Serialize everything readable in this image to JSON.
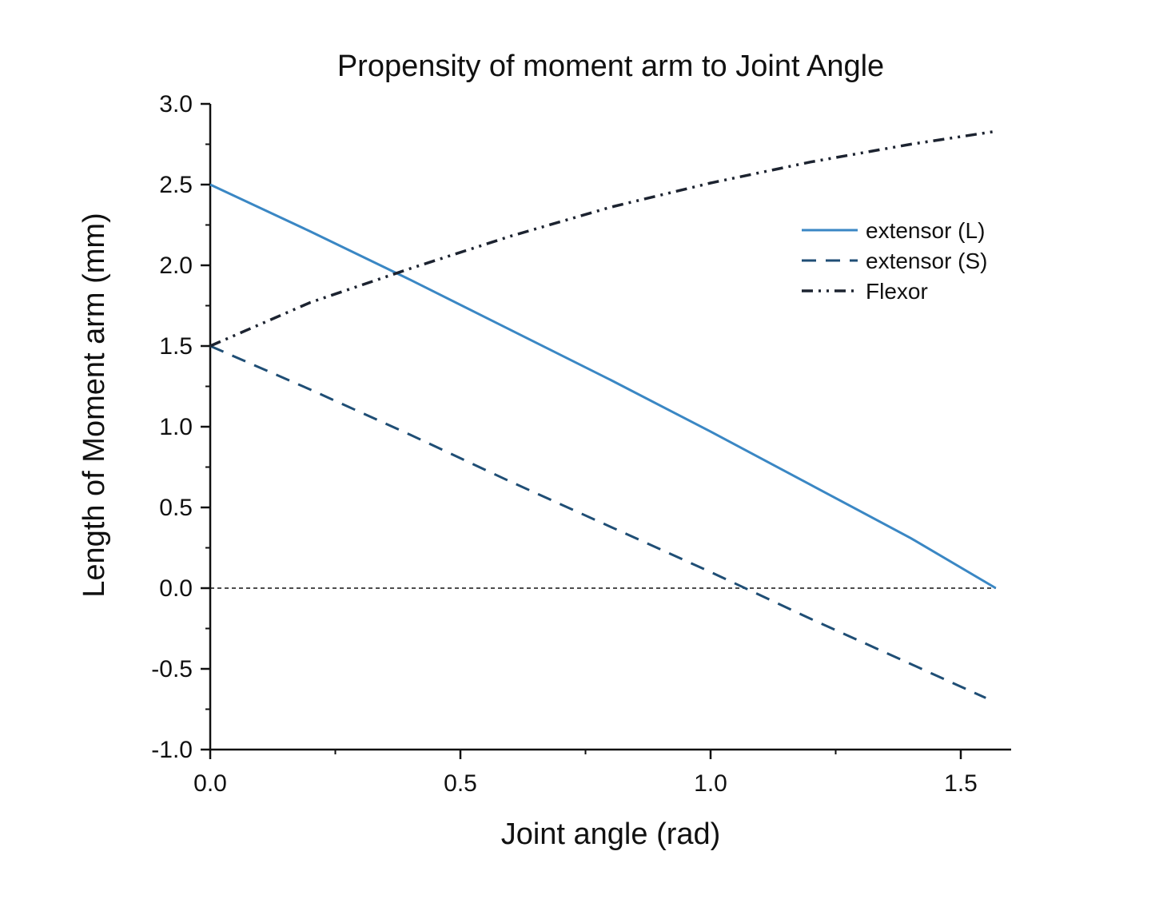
{
  "chart_data": {
    "type": "line",
    "title": "Propensity of moment arm to Joint Angle",
    "xlabel": "Joint angle (rad)",
    "ylabel": "Length of Moment arm (mm)",
    "xlim": [
      0.0,
      1.6
    ],
    "ylim": [
      -1.0,
      3.0
    ],
    "xticks": [
      "0.0",
      "0.5",
      "1.0",
      "1.5"
    ],
    "yticks": [
      "-1.0",
      "-0.5",
      "0.0",
      "0.5",
      "1.0",
      "1.5",
      "2.0",
      "2.5",
      "3.0"
    ],
    "reference_line_y": 0.0,
    "grid": false,
    "legend_position": "top-right",
    "series": [
      {
        "name": "extensor (L)",
        "style": "solid",
        "color": "#3a87c4",
        "x": [
          0.0,
          0.2,
          0.4,
          0.6,
          0.8,
          1.0,
          1.2,
          1.4,
          1.57
        ],
        "y": [
          2.5,
          2.21,
          1.91,
          1.6,
          1.29,
          0.97,
          0.64,
          0.31,
          0.0
        ]
      },
      {
        "name": "extensor (S)",
        "style": "dashed",
        "color": "#1f4e75",
        "x": [
          0.0,
          0.2,
          0.4,
          0.6,
          0.8,
          1.0,
          1.2,
          1.4,
          1.55
        ],
        "y": [
          1.5,
          1.23,
          0.95,
          0.66,
          0.38,
          0.1,
          -0.19,
          -0.47,
          -0.68
        ]
      },
      {
        "name": "Flexor",
        "style": "dash-dot-dot",
        "color": "#1c2330",
        "x": [
          0.0,
          0.2,
          0.4,
          0.6,
          0.8,
          1.0,
          1.2,
          1.4,
          1.57
        ],
        "y": [
          1.5,
          1.77,
          1.98,
          2.18,
          2.36,
          2.51,
          2.64,
          2.75,
          2.83
        ]
      }
    ]
  }
}
